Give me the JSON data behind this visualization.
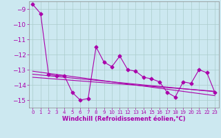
{
  "xlabel": "Windchill (Refroidissement éolien,°C)",
  "x": [
    0,
    1,
    2,
    3,
    4,
    5,
    6,
    7,
    8,
    9,
    10,
    11,
    12,
    13,
    14,
    15,
    16,
    17,
    18,
    19,
    20,
    21,
    22,
    23
  ],
  "y_main": [
    -8.7,
    -9.3,
    -13.3,
    -13.4,
    -13.4,
    -14.5,
    -15.0,
    -14.9,
    -11.5,
    -12.5,
    -12.8,
    -12.1,
    -13.0,
    -13.1,
    -13.5,
    -13.6,
    -13.8,
    -14.5,
    -14.8,
    -13.8,
    -13.9,
    -13.0,
    -13.2,
    -14.5
  ],
  "y_trend1": [
    -13.3,
    -13.35,
    -13.4,
    -13.45,
    -13.5,
    -13.55,
    -13.6,
    -13.65,
    -13.7,
    -13.75,
    -13.8,
    -13.85,
    -13.9,
    -13.95,
    -14.0,
    -14.05,
    -14.1,
    -14.15,
    -14.2,
    -14.25,
    -14.3,
    -14.35,
    -14.4,
    -14.45
  ],
  "y_trend2": [
    -13.1,
    -13.17,
    -13.24,
    -13.31,
    -13.38,
    -13.45,
    -13.52,
    -13.59,
    -13.66,
    -13.73,
    -13.8,
    -13.87,
    -13.94,
    -14.01,
    -14.08,
    -14.15,
    -14.22,
    -14.29,
    -14.36,
    -14.43,
    -14.5,
    -14.57,
    -14.64,
    -14.71
  ],
  "y_trend3": [
    -13.5,
    -13.54,
    -13.58,
    -13.62,
    -13.66,
    -13.7,
    -13.74,
    -13.78,
    -13.82,
    -13.86,
    -13.9,
    -13.94,
    -13.98,
    -14.02,
    -14.06,
    -14.1,
    -14.14,
    -14.18,
    -14.22,
    -14.26,
    -14.3,
    -14.34,
    -14.38,
    -14.42
  ],
  "line_color": "#aa00aa",
  "bg_color": "#cce8f0",
  "grid_color": "#aacccc",
  "ylim": [
    -15.5,
    -8.5
  ],
  "yticks": [
    -9,
    -10,
    -11,
    -12,
    -13,
    -14,
    -15
  ],
  "marker": "D",
  "marker_size": 2.5,
  "linewidth": 0.8
}
